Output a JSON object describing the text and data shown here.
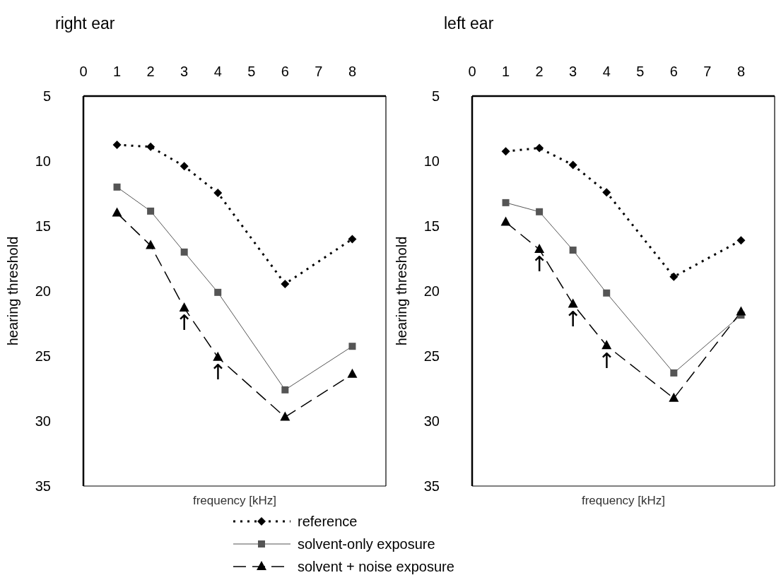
{
  "chart_data": [
    {
      "type": "line",
      "title": "right ear",
      "xlabel": "frequency [kHz]",
      "ylabel": "hearing threshold",
      "x": [
        1,
        2,
        3,
        4,
        6,
        8
      ],
      "xlim": [
        0,
        9
      ],
      "xticks": [
        0,
        1,
        2,
        3,
        4,
        5,
        6,
        7,
        8
      ],
      "ylim": [
        35,
        5
      ],
      "yticks": [
        5,
        10,
        15,
        20,
        25,
        30,
        35
      ],
      "grid": false,
      "legend": "bottom",
      "series": [
        {
          "name": "reference",
          "color": "#000000",
          "marker": "diamond",
          "line_style": "dotted",
          "values": [
            8.75,
            8.9,
            10.4,
            12.45,
            19.45,
            16.0
          ]
        },
        {
          "name": "solvent-only exposure",
          "color": "#555555",
          "marker": "square",
          "line_style": "solid",
          "values": [
            12.0,
            13.85,
            17.0,
            20.1,
            27.6,
            24.25
          ]
        },
        {
          "name": "solvent + noise exposure",
          "color": "#000000",
          "marker": "triangle",
          "line_style": "dashed",
          "values": [
            14.0,
            16.5,
            21.3,
            25.1,
            29.7,
            26.4
          ]
        }
      ],
      "annotations": [
        {
          "text": "↑",
          "x": 3,
          "y": 21.3
        },
        {
          "text": "↑",
          "x": 4,
          "y": 25.1
        }
      ]
    },
    {
      "type": "line",
      "title": "left ear",
      "xlabel": "frequency [kHz]",
      "ylabel": "hearing threshold",
      "x": [
        1,
        2,
        3,
        4,
        6,
        8
      ],
      "xlim": [
        0,
        9
      ],
      "xticks": [
        0,
        1,
        2,
        3,
        4,
        5,
        6,
        7,
        8
      ],
      "ylim": [
        35,
        5
      ],
      "yticks": [
        5,
        10,
        15,
        20,
        25,
        30,
        35
      ],
      "grid": false,
      "legend": "bottom",
      "series": [
        {
          "color": "#000000",
          "marker": "diamond",
          "line_style": "dotted",
          "values": [
            9.25,
            9.0,
            10.3,
            12.4,
            18.9,
            16.1
          ]
        },
        {
          "color": "#555555",
          "marker": "square",
          "line_style": "solid",
          "values": [
            13.2,
            13.9,
            16.85,
            20.15,
            26.3,
            21.85
          ]
        },
        {
          "color": "#000000",
          "marker": "triangle",
          "line_style": "dashed",
          "values": [
            14.7,
            16.8,
            21.0,
            24.2,
            28.25,
            21.6
          ]
        }
      ],
      "annotations": [
        {
          "text": "↑",
          "x": 2,
          "y": 16.8
        },
        {
          "text": "↑",
          "x": 3,
          "y": 21.0
        },
        {
          "text": "↑",
          "x": 4,
          "y": 24.2
        }
      ]
    }
  ]
}
